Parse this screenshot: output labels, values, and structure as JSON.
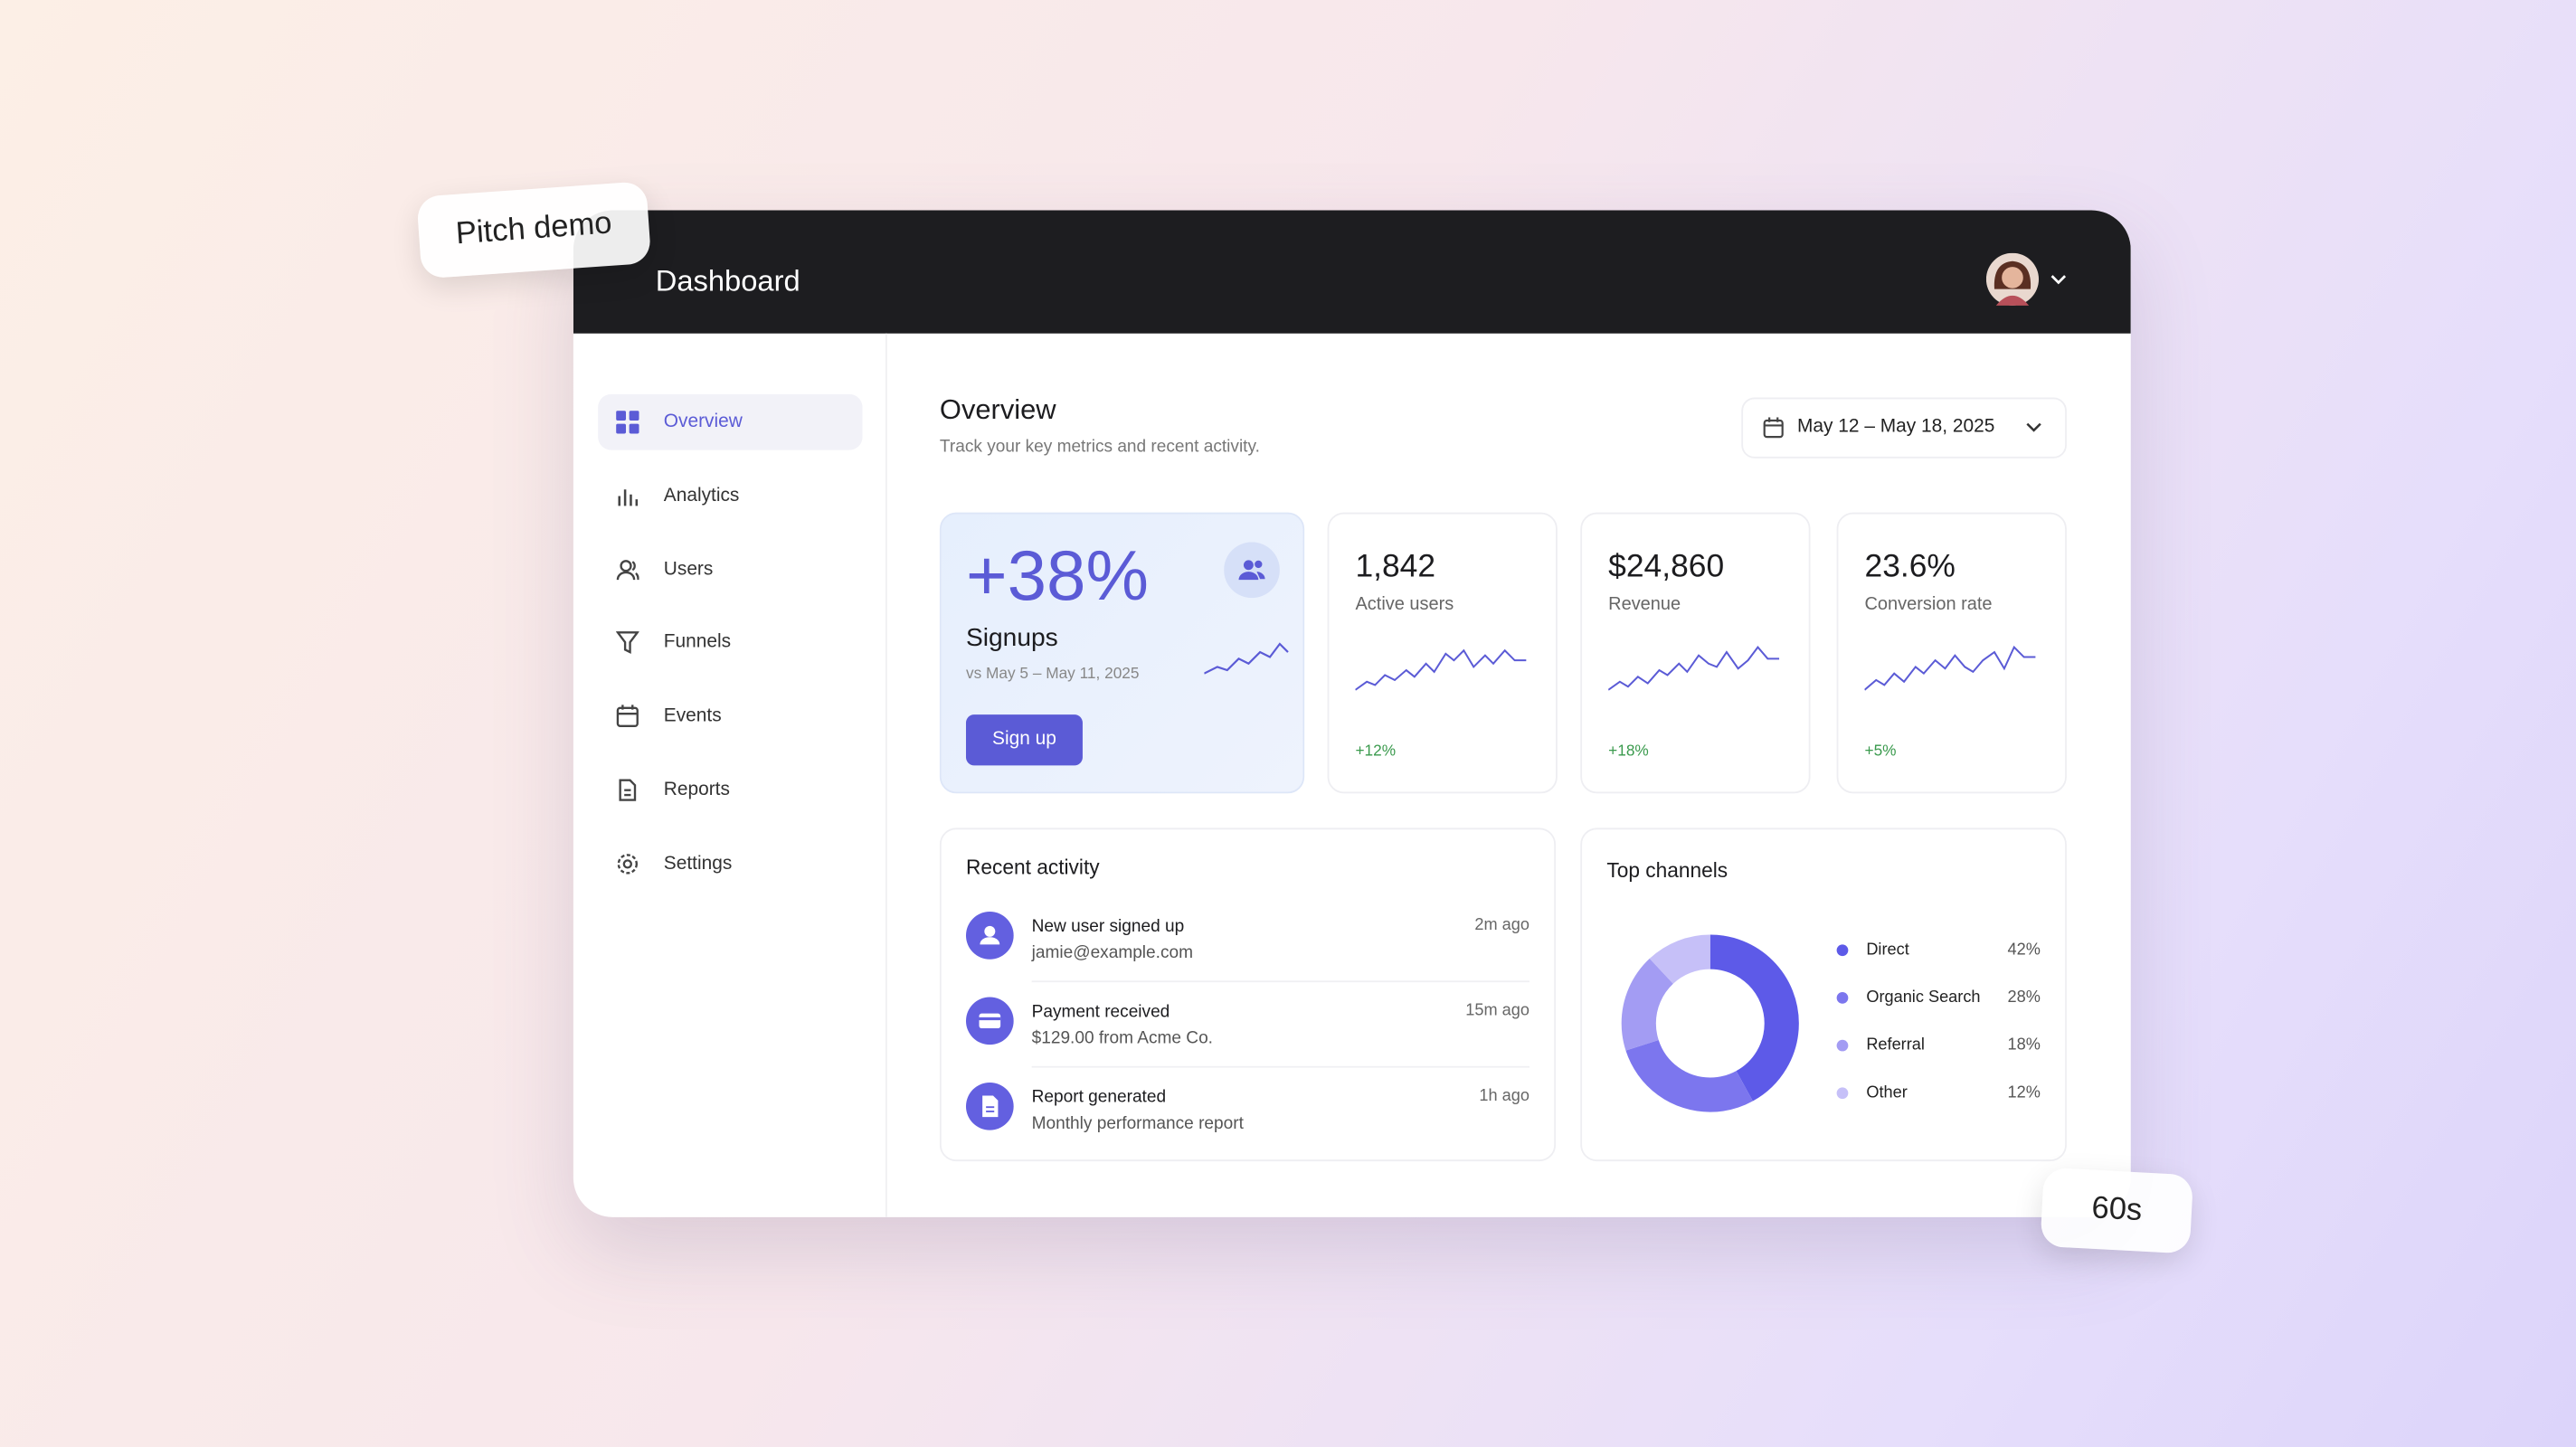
{
  "tags": {
    "pitch": "Pitch demo",
    "duration": "60s"
  },
  "header": {
    "title": "Dashboard"
  },
  "sidebar": {
    "items": [
      "Overview",
      "Analytics",
      "Users",
      "Funnels",
      "Events",
      "Reports",
      "Settings"
    ]
  },
  "overview": {
    "title": "Overview",
    "subtitle": "Track your key metrics and recent activity.",
    "date_range": "May 12 – May 18, 2025"
  },
  "kpis": [
    {
      "value": "+38%",
      "label": "Signups",
      "comparison": "vs May 5 – May 11, 2025",
      "button": "Sign up"
    },
    {
      "value": "1,842",
      "label": "Active users",
      "change": "+12%"
    },
    {
      "value": "$24,860",
      "label": "Revenue",
      "change": "+18%"
    },
    {
      "value": "23.6%",
      "label": "Conversion rate",
      "change": "+5%"
    }
  ],
  "activity": {
    "title": "Recent activity",
    "items": [
      {
        "title": "New user signed up",
        "detail": "jamie@example.com",
        "time": "2m ago"
      },
      {
        "title": "Payment received",
        "detail": "$129.00 from Acme Co.",
        "time": "15m ago"
      },
      {
        "title": "Report generated",
        "detail": "Monthly performance report",
        "time": "1h ago"
      }
    ]
  },
  "channels": {
    "title": "Top channels",
    "items": [
      {
        "name": "Direct",
        "value": 42,
        "value_label": "42%",
        "color": "#5d5ae8"
      },
      {
        "name": "Organic Search",
        "value": 28,
        "value_label": "28%",
        "color": "#7c76ee"
      },
      {
        "name": "Referral",
        "value": 18,
        "value_label": "18%",
        "color": "#a39cf3"
      },
      {
        "name": "Other",
        "value": 12,
        "value_label": "12%",
        "color": "#c6c0f8"
      }
    ]
  }
}
